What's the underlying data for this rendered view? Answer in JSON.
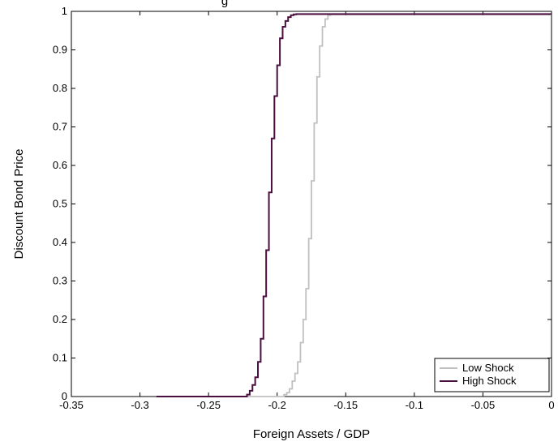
{
  "chart_data": {
    "type": "line",
    "title": "g",
    "xlabel": "Foreign Assets / GDP",
    "ylabel": "Discount Bond Price",
    "xlim": [
      -0.35,
      0
    ],
    "ylim": [
      0,
      1
    ],
    "xticks": [
      -0.35,
      -0.3,
      -0.25,
      -0.2,
      -0.15,
      -0.1,
      -0.05,
      0
    ],
    "xtick_labels": [
      "-0.35",
      "-0.3",
      "-0.25",
      "-0.2",
      "-0.15",
      "-0.1",
      "-0.05",
      "0"
    ],
    "yticks": [
      0,
      0.1,
      0.2,
      0.3,
      0.4,
      0.5,
      0.6,
      0.7,
      0.8,
      0.9,
      1
    ],
    "ytick_labels": [
      "0",
      "0.1",
      "0.2",
      "0.3",
      "0.4",
      "0.5",
      "0.6",
      "0.7",
      "0.8",
      "0.9",
      "1"
    ],
    "grid": false,
    "legend_position": "bottom-right",
    "series": [
      {
        "name": "Low Shock",
        "color": "#c0c0c0",
        "line": "step",
        "x": [
          -0.288,
          -0.197,
          -0.195,
          -0.193,
          -0.191,
          -0.189,
          -0.187,
          -0.185,
          -0.183,
          -0.181,
          -0.179,
          -0.177,
          -0.175,
          -0.173,
          -0.171,
          -0.169,
          -0.167,
          -0.165,
          -0.163,
          -0.161,
          0
        ],
        "y": [
          0,
          0,
          0.005,
          0.01,
          0.02,
          0.04,
          0.06,
          0.09,
          0.14,
          0.2,
          0.28,
          0.41,
          0.56,
          0.71,
          0.83,
          0.91,
          0.96,
          0.98,
          0.99,
          0.992,
          0.992
        ]
      },
      {
        "name": "High Shock",
        "color": "#4a0e3f",
        "line": "step",
        "x": [
          -0.288,
          -0.224,
          -0.222,
          -0.22,
          -0.218,
          -0.216,
          -0.214,
          -0.212,
          -0.21,
          -0.208,
          -0.206,
          -0.204,
          -0.202,
          -0.2,
          -0.198,
          -0.196,
          -0.194,
          -0.192,
          -0.19,
          -0.188,
          -0.186,
          -0.184,
          0
        ],
        "y": [
          0,
          0,
          0.005,
          0.015,
          0.03,
          0.05,
          0.09,
          0.15,
          0.26,
          0.38,
          0.53,
          0.67,
          0.78,
          0.86,
          0.93,
          0.96,
          0.975,
          0.985,
          0.99,
          0.992,
          0.993,
          0.993,
          0.993
        ]
      }
    ]
  }
}
